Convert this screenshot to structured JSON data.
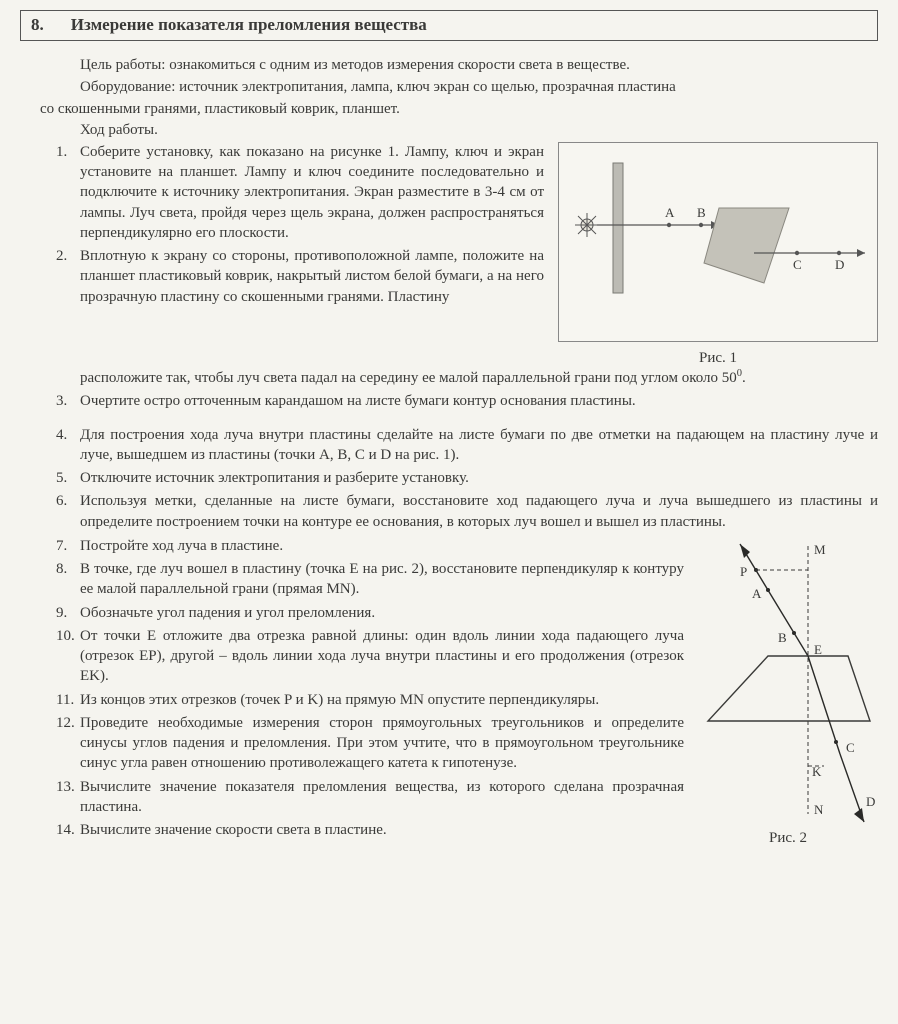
{
  "number": "8.",
  "title": "Измерение показателя преломления вещества",
  "goal_label": "Цель работы:",
  "goal": " ознакомиться с одним из методов измерения скорости света в веществе.",
  "equip_label": "Оборудование:",
  "equip": " источник электропитания, лампа, ключ экран со щелью, прозрачная пластина",
  "equip_cont": "со скошенными гранями, пластиковый коврик, планшет.",
  "procedure_label": "Ход работы.",
  "steps_block1": [
    {
      "n": "1.",
      "t": "Соберите установку, как показано на рисунке 1. Лампу, ключ и экран установите на планшет. Лампу и ключ соедините последовательно и подключите к источнику электропитания. Экран разместите в 3-4 см от лампы. Луч света, пройдя через щель экрана, должен распространяться перпендикулярно его плоскости."
    },
    {
      "n": "2.",
      "t": "Вплотную к экрану со стороны, противоположной лампе, положите на планшет пластиковый коврик, накрытый листом белой бумаги, а на него прозрачную пластину со скошенными гранями. Пластину"
    }
  ],
  "step2_cont": "расположите так, чтобы луч света падал на середину ее малой параллельной грани под углом около 50",
  "step2_deg": "0",
  "step2_end": ".",
  "steps_block2": [
    {
      "n": "3.",
      "t": "Очертите остро отточенным карандашом на листе бумаги контур основания пластины."
    }
  ],
  "steps_block3": [
    {
      "n": "4.",
      "t": "Для построения хода луча внутри пластины сделайте на листе бумаги по две отметки на падающем на пластину луче и луче, вышедшем из пластины (точки A, B, C и D на рис. 1)."
    },
    {
      "n": "5.",
      "t": "Отключите источник электропитания и разберите установку."
    },
    {
      "n": "6.",
      "t": "Используя метки, сделанные на листе бумаги, восстановите ход падающего луча и луча вышедшего из пластины и определите построением точки на контуре ее основания, в которых луч вошел и вышел из пластины."
    }
  ],
  "steps_block4": [
    {
      "n": "7.",
      "t": "Постройте ход луча в пластине."
    },
    {
      "n": "8.",
      "t": "В точке, где луч вошел в пластину (точка E на рис. 2), восстановите перпендикуляр к контуру ее малой параллельной грани (прямая MN)."
    },
    {
      "n": "9.",
      "t": "Обозначьте угол падения и угол преломления."
    },
    {
      "n": "10.",
      "t": "От точки E отложите два отрезка равной длины: один вдоль линии хода падающего луча (отрезок EP), другой – вдоль линии хода луча внутри пластины и его продолжения (отрезок EK)."
    },
    {
      "n": "11.",
      "t": "Из концов этих отрезков (точек P и K) на прямую MN опустите перпендикуляры."
    },
    {
      "n": "12.",
      "t": "Проведите необходимые измерения сторон прямоугольных треугольников и определите синусы углов падения и преломления. При этом учтите, что в прямоугольном треугольнике синус угла равен отношению противолежащего катета к гипотенузе."
    },
    {
      "n": "13.",
      "t": "Вычислите значение показателя преломления вещества, из которого сделана прозрачная пластина."
    },
    {
      "n": "14.",
      "t": "Вычислите значение скорости света в пластине."
    }
  ],
  "fig1_caption": "Рис. 1",
  "fig1_labels": {
    "A": "A",
    "B": "B",
    "C": "C",
    "D": "D"
  },
  "fig2_caption": "Рис. 2",
  "fig2_labels": {
    "M": "M",
    "N": "N",
    "P": "P",
    "A": "A",
    "B": "B",
    "E": "E",
    "K": "K",
    "C": "C",
    "D": "D"
  },
  "fig1_style": {
    "screen_fill": "#bcbbb4",
    "screen_stroke": "#7a7a74",
    "prism_fill": "#c4c2b9",
    "prism_stroke": "#8a8880",
    "line": "#555",
    "label_font": "13",
    "label_color": "#3a3a38",
    "lamp_color": "#555"
  },
  "fig2_style": {
    "line": "#3a3a38",
    "dash": "4,3",
    "thin": "1",
    "thick": "1.4",
    "arrow": "#2a2a28",
    "label_font": "13",
    "label_color": "#3a3a38",
    "prism_stroke": "#3a3a38"
  }
}
